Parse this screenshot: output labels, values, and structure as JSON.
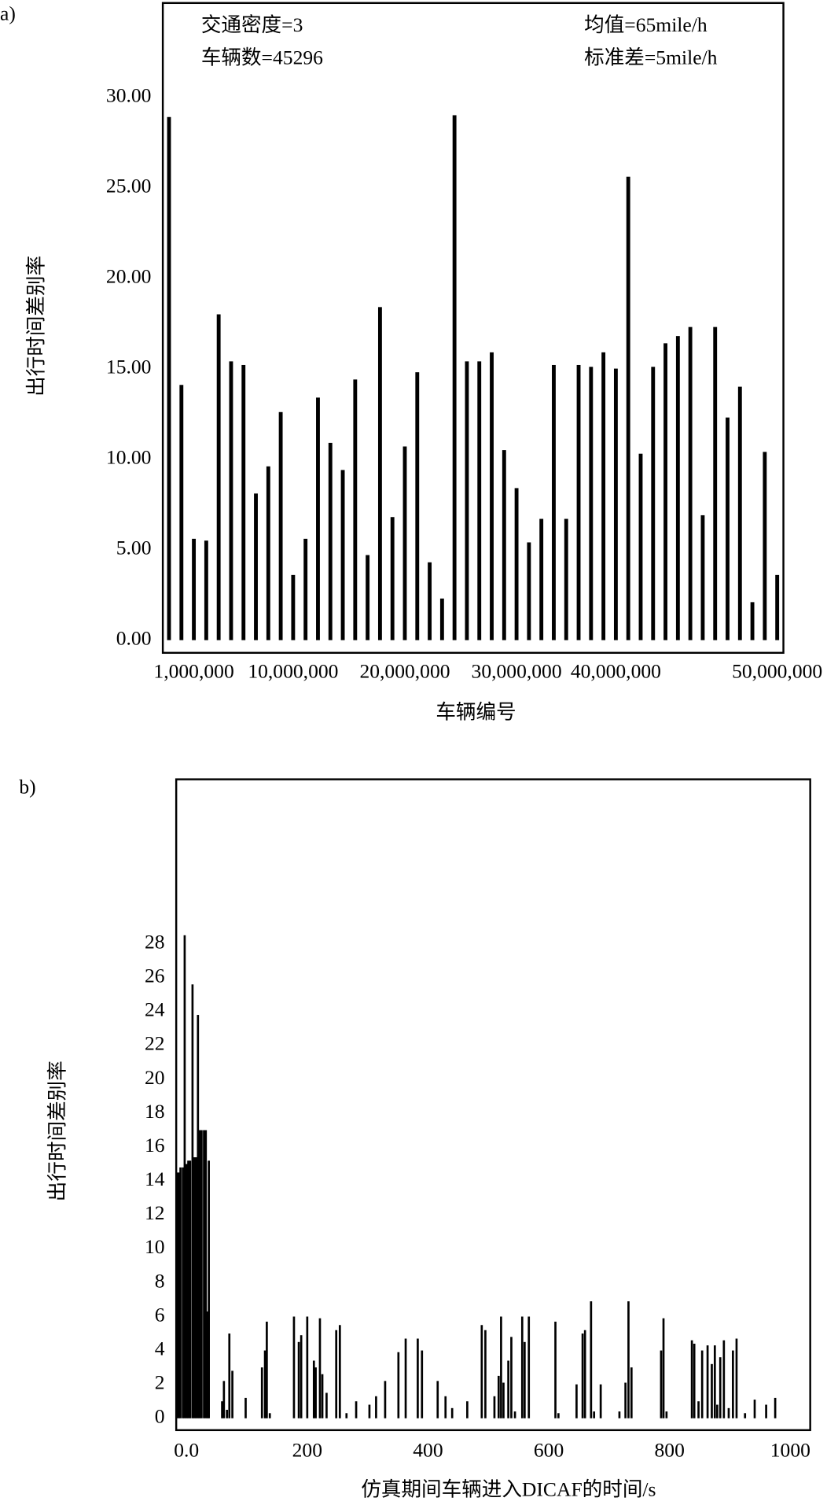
{
  "chart_data": [
    {
      "type": "bar",
      "label": "a)",
      "ylabel": "出行时间差别率",
      "xlabel": "车辆编号",
      "annotations": [
        "交通密度=3",
        "车辆数=45296",
        "均值=65mile/h",
        "标准差=5mile/h"
      ],
      "color": "#000000",
      "categories": [
        null,
        null,
        "1,000,000",
        null,
        null,
        null,
        null,
        null,
        null,
        null,
        "10,000,000",
        null,
        null,
        null,
        null,
        null,
        null,
        null,
        null,
        "20,000,000",
        null,
        null,
        null,
        null,
        null,
        null,
        null,
        null,
        "30,000,000",
        null,
        null,
        null,
        null,
        null,
        null,
        null,
        "40,000,000",
        null,
        null,
        null,
        null,
        null,
        null,
        null,
        null,
        null,
        null,
        null,
        null,
        "50,000,000"
      ],
      "values": [
        28.9,
        14.1,
        5.6,
        5.5,
        18.0,
        15.4,
        15.2,
        8.1,
        9.6,
        12.6,
        3.6,
        5.6,
        13.4,
        10.9,
        9.4,
        14.4,
        4.7,
        18.4,
        6.8,
        10.7,
        14.8,
        4.3,
        2.3,
        29.0,
        15.4,
        15.4,
        15.9,
        10.5,
        8.4,
        5.4,
        6.7,
        15.2,
        6.7,
        15.2,
        15.1,
        15.9,
        15.0,
        25.6,
        10.3,
        15.1,
        16.4,
        16.8,
        17.3,
        6.9,
        17.3,
        12.3,
        14.0,
        2.1,
        10.4,
        3.6
      ],
      "ylim": [
        -0.7,
        35.2
      ],
      "yticks": [
        {
          "value": 0,
          "label": "0.00"
        },
        {
          "value": 5,
          "label": "5.00"
        },
        {
          "value": 10,
          "label": "10.00"
        },
        {
          "value": 15,
          "label": "15.00"
        },
        {
          "value": 20,
          "label": "20.00"
        },
        {
          "value": 25,
          "label": "25.00"
        },
        {
          "value": 30,
          "label": "30.00"
        }
      ],
      "grid": false
    },
    {
      "type": "bar",
      "label": "b)",
      "ylabel": "出行时间差别率",
      "xlabel": "仿真期间车辆进入DICAF的时间/s",
      "color": "#000000",
      "x": [
        -16,
        -13,
        -10,
        -6,
        -3,
        0,
        3,
        6,
        10,
        13,
        16,
        19,
        22,
        25,
        29,
        32,
        35,
        37,
        59,
        62,
        67,
        71,
        76,
        98,
        125,
        130,
        133,
        138,
        178,
        186,
        190,
        200,
        211,
        214,
        221,
        225,
        232,
        248,
        254,
        265,
        281,
        303,
        314,
        329,
        351,
        363,
        383,
        390,
        416,
        429,
        440,
        465,
        489,
        495,
        510,
        517,
        521,
        525,
        533,
        538,
        544,
        556,
        560,
        567,
        611,
        616,
        646,
        656,
        660,
        670,
        675,
        686,
        717,
        727,
        732,
        737,
        786,
        790,
        795,
        837,
        841,
        848,
        854,
        863,
        870,
        875,
        879,
        884,
        890,
        898,
        905,
        911,
        925,
        941,
        960,
        975
      ],
      "values": [
        14.5,
        14.5,
        14.8,
        14.8,
        28.5,
        15.0,
        15.2,
        15.2,
        25.6,
        15.4,
        15.4,
        23.8,
        17.0,
        17.0,
        17.0,
        17.0,
        6.3,
        15.2,
        1.0,
        2.2,
        0.5,
        5.0,
        2.8,
        1.2,
        3.0,
        4.0,
        5.7,
        0.3,
        6.0,
        4.5,
        4.9,
        6.0,
        3.4,
        3.0,
        5.9,
        2.6,
        1.5,
        5.2,
        5.5,
        0.3,
        1.0,
        0.8,
        1.3,
        2.2,
        3.9,
        4.7,
        4.7,
        4.0,
        2.2,
        1.3,
        0.6,
        1.0,
        5.5,
        5.2,
        1.3,
        2.5,
        6.0,
        2.1,
        3.4,
        4.8,
        0.4,
        6.0,
        4.5,
        6.0,
        5.7,
        0.3,
        2.0,
        5.0,
        5.2,
        6.9,
        0.4,
        2.0,
        0.4,
        2.1,
        6.9,
        3.0,
        4.0,
        5.9,
        0.4,
        4.6,
        4.4,
        1.0,
        4.0,
        4.3,
        3.2,
        4.3,
        0.8,
        3.6,
        4.6,
        0.6,
        4.0,
        4.7,
        0.3,
        1.1,
        0.8,
        1.2
      ],
      "xlim": [
        -17,
        1033
      ],
      "xticks": [
        {
          "value": 0,
          "label": "0.0"
        },
        200,
        400,
        600,
        800,
        1000
      ],
      "ylim": [
        -0.7,
        37.7
      ],
      "yticks": [
        0,
        2,
        4,
        6,
        8,
        10,
        12,
        14,
        16,
        18,
        20,
        22,
        24,
        26,
        28
      ],
      "grid": false
    }
  ]
}
